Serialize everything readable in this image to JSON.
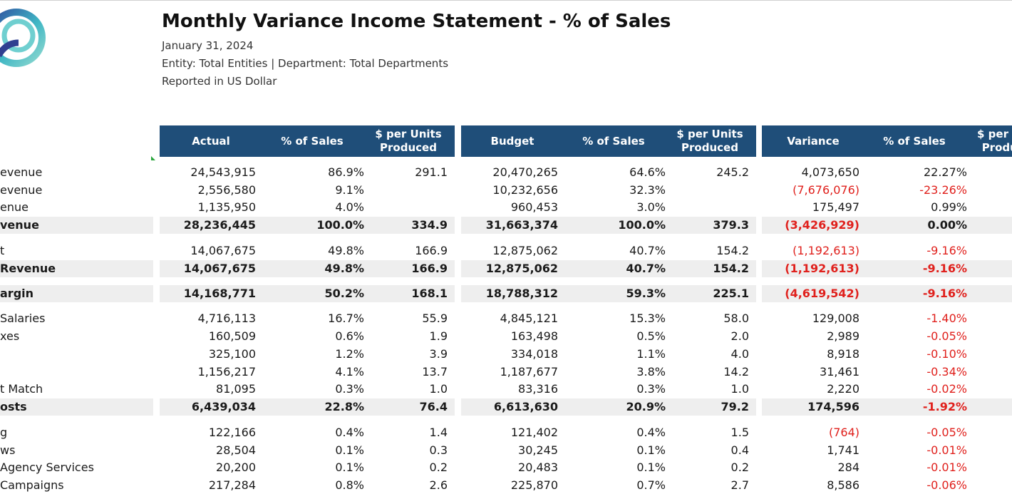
{
  "report": {
    "title": "Monthly Variance Income Statement - % of Sales",
    "date": "January 31, 2024",
    "entity_line": "Entity: Total Entities | Department: Total Departments",
    "currency_line": "Reported in US Dollar"
  },
  "columns": [
    "Actual",
    "% of Sales",
    "$ per Units\nProduced",
    "Budget",
    "% of Sales",
    "$ per Units\nProduced",
    "Variance",
    "% of Sales",
    "$ per Units\nProduced"
  ],
  "colors": {
    "header_bg": "#1f4e79",
    "header_text": "#ffffff",
    "total_row_bg": "#eeeeee",
    "negative": "#e0201c"
  },
  "icons": {
    "logo": "spiral-logo-icon"
  },
  "rows": [
    {
      "label": "evenue",
      "total": false,
      "values": [
        "24,543,915",
        "86.9%",
        "291.1",
        "20,470,265",
        "64.6%",
        "245.2",
        "4,073,650",
        "22.27%",
        ""
      ],
      "neg": [
        false,
        false,
        false,
        false,
        false,
        false,
        false,
        false,
        false
      ]
    },
    {
      "label": "evenue",
      "total": false,
      "values": [
        "2,556,580",
        "9.1%",
        "",
        "10,232,656",
        "32.3%",
        "",
        "(7,676,076)",
        "-23.26%",
        ""
      ],
      "neg": [
        false,
        false,
        false,
        false,
        false,
        false,
        true,
        true,
        false
      ]
    },
    {
      "label": "enue",
      "total": false,
      "values": [
        "1,135,950",
        "4.0%",
        "",
        "960,453",
        "3.0%",
        "",
        "175,497",
        "0.99%",
        ""
      ],
      "neg": [
        false,
        false,
        false,
        false,
        false,
        false,
        false,
        false,
        false
      ]
    },
    {
      "label": "venue",
      "total": true,
      "values": [
        "28,236,445",
        "100.0%",
        "334.9",
        "31,663,374",
        "100.0%",
        "379.3",
        "(3,426,929)",
        "0.00%",
        ""
      ],
      "neg": [
        false,
        false,
        false,
        false,
        false,
        false,
        true,
        false,
        false
      ]
    },
    {
      "label": "t",
      "total": false,
      "values": [
        "14,067,675",
        "49.8%",
        "166.9",
        "12,875,062",
        "40.7%",
        "154.2",
        "(1,192,613)",
        "-9.16%",
        ""
      ],
      "neg": [
        false,
        false,
        false,
        false,
        false,
        false,
        true,
        true,
        false
      ]
    },
    {
      "label": "Revenue",
      "total": true,
      "values": [
        "14,067,675",
        "49.8%",
        "166.9",
        "12,875,062",
        "40.7%",
        "154.2",
        "(1,192,613)",
        "-9.16%",
        ""
      ],
      "neg": [
        false,
        false,
        false,
        false,
        false,
        false,
        true,
        true,
        false
      ]
    },
    {
      "label": "argin",
      "total": true,
      "values": [
        "14,168,771",
        "50.2%",
        "168.1",
        "18,788,312",
        "59.3%",
        "225.1",
        "(4,619,542)",
        "-9.16%",
        ""
      ],
      "neg": [
        false,
        false,
        false,
        false,
        false,
        false,
        true,
        true,
        false
      ]
    },
    {
      "label": " Salaries",
      "total": false,
      "values": [
        "4,716,113",
        "16.7%",
        "55.9",
        "4,845,121",
        "15.3%",
        "58.0",
        "129,008",
        "-1.40%",
        ""
      ],
      "neg": [
        false,
        false,
        false,
        false,
        false,
        false,
        false,
        true,
        false
      ]
    },
    {
      "label": "xes",
      "total": false,
      "values": [
        "160,509",
        "0.6%",
        "1.9",
        "163,498",
        "0.5%",
        "2.0",
        "2,989",
        "-0.05%",
        ""
      ],
      "neg": [
        false,
        false,
        false,
        false,
        false,
        false,
        false,
        true,
        false
      ]
    },
    {
      "label": "",
      "total": false,
      "values": [
        "325,100",
        "1.2%",
        "3.9",
        "334,018",
        "1.1%",
        "4.0",
        "8,918",
        "-0.10%",
        ""
      ],
      "neg": [
        false,
        false,
        false,
        false,
        false,
        false,
        false,
        true,
        false
      ]
    },
    {
      "label": "",
      "total": false,
      "values": [
        "1,156,217",
        "4.1%",
        "13.7",
        "1,187,677",
        "3.8%",
        "14.2",
        "31,461",
        "-0.34%",
        ""
      ],
      "neg": [
        false,
        false,
        false,
        false,
        false,
        false,
        false,
        true,
        false
      ]
    },
    {
      "label": "t Match",
      "total": false,
      "values": [
        "81,095",
        "0.3%",
        "1.0",
        "83,316",
        "0.3%",
        "1.0",
        "2,220",
        "-0.02%",
        ""
      ],
      "neg": [
        false,
        false,
        false,
        false,
        false,
        false,
        false,
        true,
        false
      ]
    },
    {
      "label": "osts",
      "total": true,
      "values": [
        "6,439,034",
        "22.8%",
        "76.4",
        "6,613,630",
        "20.9%",
        "79.2",
        "174,596",
        "-1.92%",
        ""
      ],
      "neg": [
        false,
        false,
        false,
        false,
        false,
        false,
        false,
        true,
        false
      ]
    },
    {
      "label": "g",
      "total": false,
      "values": [
        "122,166",
        "0.4%",
        "1.4",
        "121,402",
        "0.4%",
        "1.5",
        "(764)",
        "-0.05%",
        ""
      ],
      "neg": [
        false,
        false,
        false,
        false,
        false,
        false,
        true,
        true,
        false
      ]
    },
    {
      "label": "ws",
      "total": false,
      "values": [
        "28,504",
        "0.1%",
        "0.3",
        "30,245",
        "0.1%",
        "0.4",
        "1,741",
        "-0.01%",
        ""
      ],
      "neg": [
        false,
        false,
        false,
        false,
        false,
        false,
        false,
        true,
        false
      ]
    },
    {
      "label": " Agency Services",
      "total": false,
      "values": [
        "20,200",
        "0.1%",
        "0.2",
        "20,483",
        "0.1%",
        "0.2",
        "284",
        "-0.01%",
        ""
      ],
      "neg": [
        false,
        false,
        false,
        false,
        false,
        false,
        false,
        true,
        false
      ]
    },
    {
      "label": " Campaigns",
      "total": false,
      "values": [
        "217,284",
        "0.8%",
        "2.6",
        "225,870",
        "0.7%",
        "2.7",
        "8,586",
        "-0.06%",
        ""
      ],
      "neg": [
        false,
        false,
        false,
        false,
        false,
        false,
        false,
        true,
        false
      ]
    }
  ]
}
